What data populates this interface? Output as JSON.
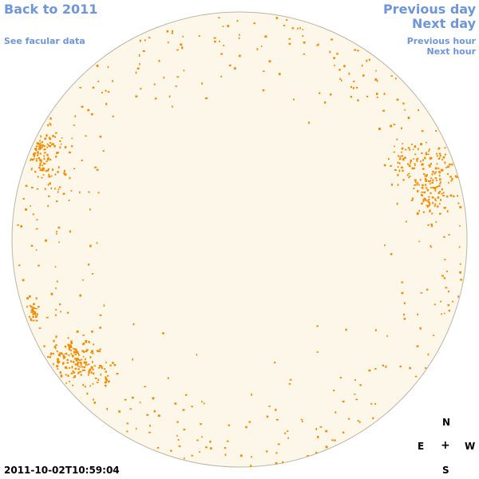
{
  "nav": {
    "back_label": "Back to 2011",
    "prev_day_label": "Previous day",
    "next_day_label": "Next day",
    "facular_label": "See facular data",
    "prev_hour_label": "Previous hour",
    "next_hour_label": "Next hour"
  },
  "compass": {
    "north": "N",
    "east": "E",
    "center": "+",
    "west": "W",
    "south": "S"
  },
  "timestamp": "2011-10-02T10:59:04",
  "colors": {
    "link": "#6f96d8",
    "disk_fill": "#fdf7ea",
    "disk_border": "#bbb5a6",
    "facula": "#f28c00"
  }
}
